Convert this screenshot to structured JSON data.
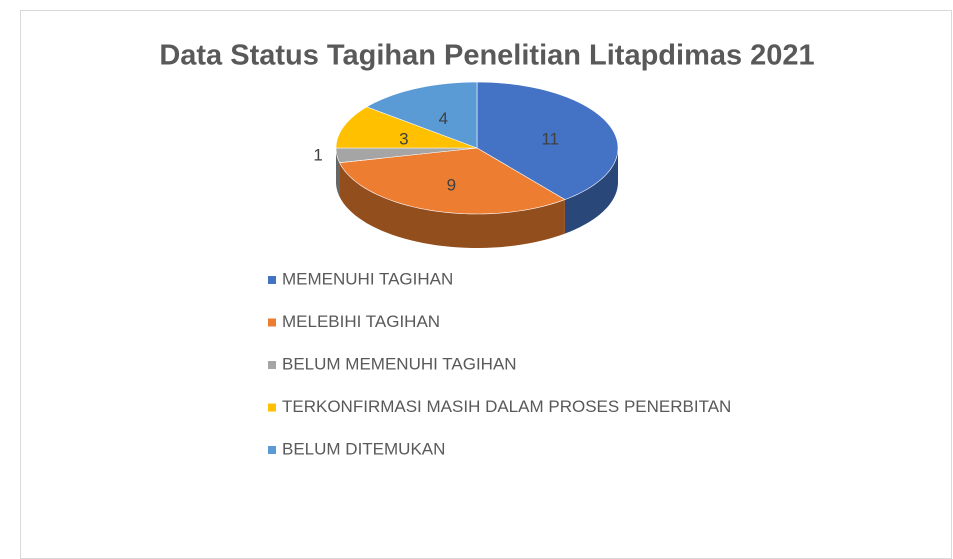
{
  "chart_data": {
    "type": "pie",
    "title": "Data Status Tagihan Penelitian Litapdimas 2021",
    "categories": [
      "MEMENUHI TAGIHAN",
      "MELEBIHI TAGIHAN",
      "BELUM MEMENUHI TAGIHAN",
      "TERKONFIRMASI MASIH DALAM PROSES PENERBITAN",
      "BELUM DITEMUKAN"
    ],
    "values": [
      11,
      9,
      1,
      3,
      4
    ],
    "colors": [
      "#4472c4",
      "#ed7d31",
      "#a5a5a5",
      "#ffc000",
      "#5b9bd5"
    ],
    "legend": "bottom"
  }
}
